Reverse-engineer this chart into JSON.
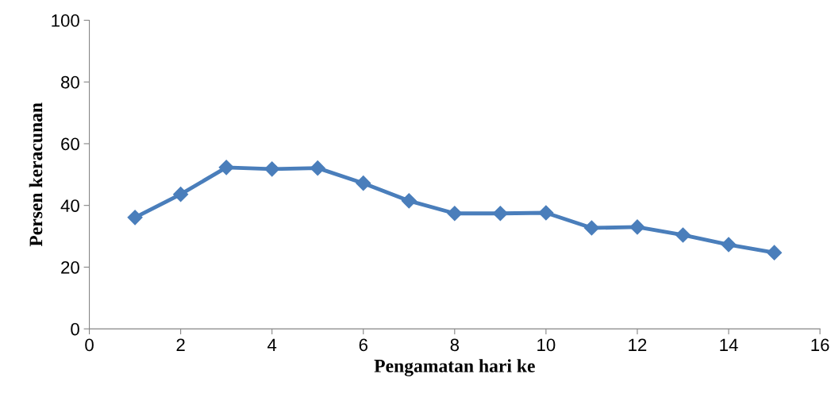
{
  "chart_data": {
    "type": "line",
    "xlabel": "Pengamatan hari ke",
    "ylabel": "Persen keracunan",
    "x": [
      1,
      2,
      3,
      4,
      5,
      6,
      7,
      8,
      9,
      10,
      11,
      12,
      13,
      14,
      15
    ],
    "series": [
      {
        "color": "#4a7ebb",
        "values": [
          36.1,
          43.6,
          52.3,
          51.8,
          52.1,
          47.2,
          41.5,
          37.4,
          37.4,
          37.6,
          32.7,
          33.0,
          30.4,
          27.3,
          24.7
        ]
      }
    ],
    "xlim": [
      0,
      16
    ],
    "xticks": [
      0,
      2,
      4,
      6,
      8,
      10,
      12,
      14,
      16
    ],
    "ylim": [
      0,
      100
    ],
    "yticks": [
      0,
      20,
      40,
      60,
      80,
      100
    ],
    "grid": false,
    "legend": false,
    "marker": "diamond",
    "line_style": "solid"
  }
}
